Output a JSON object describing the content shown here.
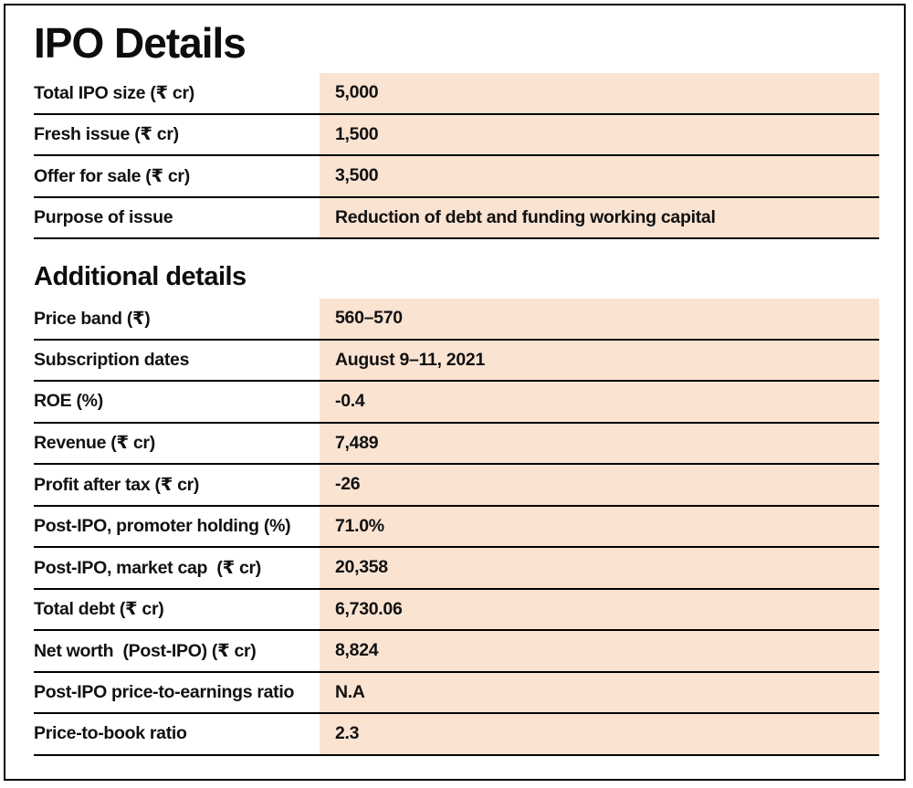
{
  "chart_data": {
    "type": "table",
    "title": "IPO Details",
    "layout": {
      "value_column_bg": "#fbe3d2",
      "row_line_color": "#000000",
      "frame_border_color": "#000000",
      "text_color": "#111111",
      "grid": "horizontal-lines-only",
      "columns": [
        "label",
        "value"
      ]
    },
    "sections": [
      {
        "heading": "IPO Details",
        "rows": [
          {
            "label": "Total IPO size (₹ cr)",
            "value": "5,000"
          },
          {
            "label": "Fresh issue (₹ cr)",
            "value": "1,500"
          },
          {
            "label": "Offer for sale (₹ cr)",
            "value": "3,500"
          },
          {
            "label": "Purpose of issue",
            "value": "Reduction of debt and funding working capital"
          }
        ]
      },
      {
        "heading": "Additional details",
        "rows": [
          {
            "label": "Price band (₹)",
            "value": "560–570"
          },
          {
            "label": "Subscription dates",
            "value": "August 9–11, 2021"
          },
          {
            "label": "ROE (%)",
            "value": "-0.4"
          },
          {
            "label": "Revenue (₹ cr)",
            "value": "7,489"
          },
          {
            "label": "Profit after tax (₹ cr)",
            "value": "-26"
          },
          {
            "label": "Post-IPO, promoter holding (%)",
            "value": "71.0%"
          },
          {
            "label": "Post-IPO, market cap  (₹ cr)",
            "value": "20,358"
          },
          {
            "label": "Total debt (₹ cr)",
            "value": "6,730.06"
          },
          {
            "label": "Net worth  (Post-IPO) (₹ cr)",
            "value": "8,824"
          },
          {
            "label": "Post-IPO price-to-earnings ratio",
            "value": "N.A"
          },
          {
            "label": "Price-to-book ratio",
            "value": "2.3"
          }
        ]
      }
    ]
  }
}
